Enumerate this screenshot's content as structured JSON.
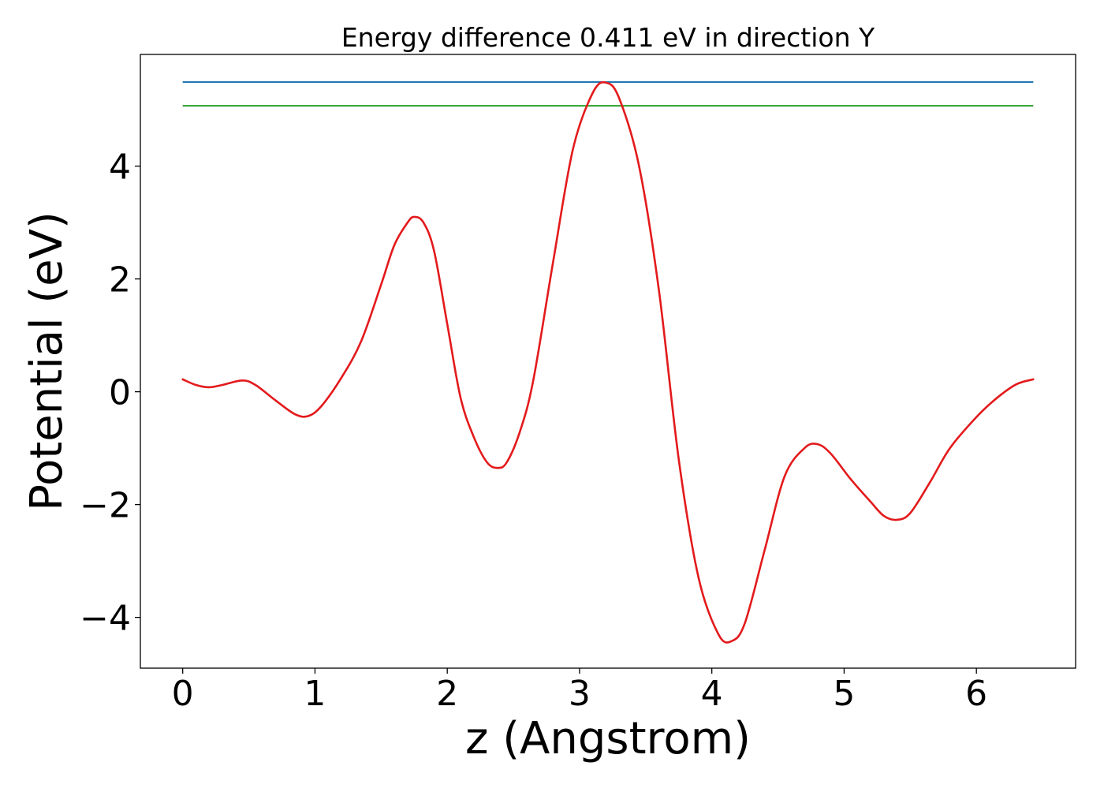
{
  "chart_data": {
    "type": "line",
    "title": "Energy difference 0.411 eV in direction Y",
    "xlabel": "z (Angstrom)",
    "ylabel": "Potential (eV)",
    "xlim": [
      -0.32,
      6.75
    ],
    "ylim": [
      -4.9,
      5.98
    ],
    "xticks": [
      0,
      1,
      2,
      3,
      4,
      5,
      6
    ],
    "yticks": [
      -4,
      -2,
      0,
      2,
      4
    ],
    "xtick_labels": [
      "0",
      "1",
      "2",
      "3",
      "4",
      "5",
      "6"
    ],
    "ytick_labels": [
      "−4",
      "−2",
      "0",
      "2",
      "4"
    ],
    "grid": false,
    "legend": "none",
    "series": [
      {
        "kind": "hline",
        "color": "#1f77b4",
        "x": [
          0,
          6.43
        ],
        "y": [
          5.49,
          5.49
        ]
      },
      {
        "kind": "hline",
        "color": "#2ca02c",
        "x": [
          0,
          6.43
        ],
        "y": [
          5.07,
          5.07
        ]
      },
      {
        "kind": "curve",
        "color": "#e31a1c",
        "x": [
          0,
          0.1,
          0.2,
          0.3,
          0.45,
          0.55,
          0.7,
          0.85,
          0.95,
          1.05,
          1.2,
          1.35,
          1.5,
          1.6,
          1.7,
          1.75,
          1.82,
          1.9,
          2.0,
          2.1,
          2.2,
          2.3,
          2.38,
          2.45,
          2.55,
          2.65,
          2.8,
          2.95,
          3.1,
          3.2,
          3.3,
          3.45,
          3.6,
          3.75,
          3.9,
          4.05,
          4.15,
          4.25,
          4.4,
          4.55,
          4.7,
          4.8,
          4.9,
          5.05,
          5.2,
          5.3,
          5.4,
          5.5,
          5.65,
          5.8,
          6.0,
          6.15,
          6.3,
          6.43
        ],
        "y": [
          0.22,
          0.12,
          0.08,
          0.12,
          0.2,
          0.12,
          -0.15,
          -0.4,
          -0.43,
          -0.25,
          0.25,
          0.9,
          1.9,
          2.6,
          3.0,
          3.1,
          3.0,
          2.5,
          1.2,
          -0.1,
          -0.8,
          -1.25,
          -1.35,
          -1.25,
          -0.7,
          0.2,
          2.3,
          4.3,
          5.3,
          5.48,
          5.2,
          4.0,
          1.8,
          -1.2,
          -3.3,
          -4.3,
          -4.42,
          -4.1,
          -2.8,
          -1.5,
          -1.0,
          -0.93,
          -1.1,
          -1.55,
          -1.95,
          -2.2,
          -2.27,
          -2.15,
          -1.6,
          -1.0,
          -0.45,
          -0.12,
          0.13,
          0.22
        ]
      }
    ]
  }
}
